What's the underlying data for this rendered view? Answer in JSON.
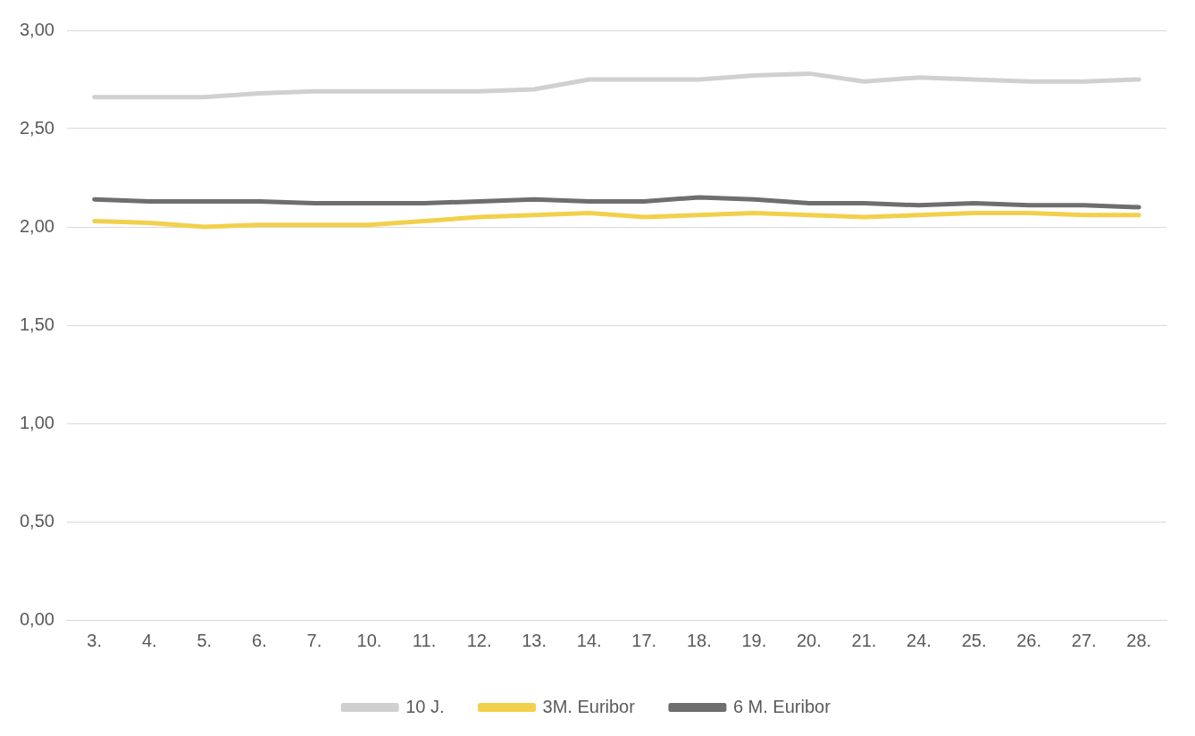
{
  "chart_data": {
    "type": "line",
    "categories": [
      "3.",
      "4.",
      "5.",
      "6.",
      "7.",
      "10.",
      "11.",
      "12.",
      "13.",
      "14.",
      "17.",
      "18.",
      "19.",
      "20.",
      "21.",
      "24.",
      "25.",
      "26.",
      "27.",
      "28."
    ],
    "series": [
      {
        "name": "10 J.",
        "color": "#d0d0d0",
        "values": [
          2.66,
          2.66,
          2.66,
          2.68,
          2.69,
          2.69,
          2.69,
          2.69,
          2.7,
          2.75,
          2.75,
          2.75,
          2.77,
          2.78,
          2.74,
          2.76,
          2.75,
          2.74,
          2.74,
          2.75
        ]
      },
      {
        "name": "3M. Euribor",
        "color": "#f2d04b",
        "values": [
          2.03,
          2.02,
          2.0,
          2.01,
          2.01,
          2.01,
          2.03,
          2.05,
          2.06,
          2.07,
          2.05,
          2.06,
          2.07,
          2.06,
          2.05,
          2.06,
          2.07,
          2.07,
          2.06,
          2.06
        ]
      },
      {
        "name": "6 M. Euribor",
        "color": "#6e6e6e",
        "values": [
          2.14,
          2.13,
          2.13,
          2.13,
          2.12,
          2.12,
          2.12,
          2.13,
          2.14,
          2.13,
          2.13,
          2.15,
          2.14,
          2.12,
          2.12,
          2.11,
          2.12,
          2.11,
          2.11,
          2.1
        ]
      }
    ],
    "ylim": [
      0,
      3
    ],
    "yticks": [
      {
        "value": 0,
        "label": "0,00"
      },
      {
        "value": 0.5,
        "label": "0,50"
      },
      {
        "value": 1,
        "label": "1,00"
      },
      {
        "value": 1.5,
        "label": "1,50"
      },
      {
        "value": 2,
        "label": "2,00"
      },
      {
        "value": 2.5,
        "label": "2,50"
      },
      {
        "value": 3,
        "label": "3,00"
      }
    ],
    "grid": "y",
    "legend": "bottom",
    "marker": "none",
    "line_style": "solid"
  }
}
